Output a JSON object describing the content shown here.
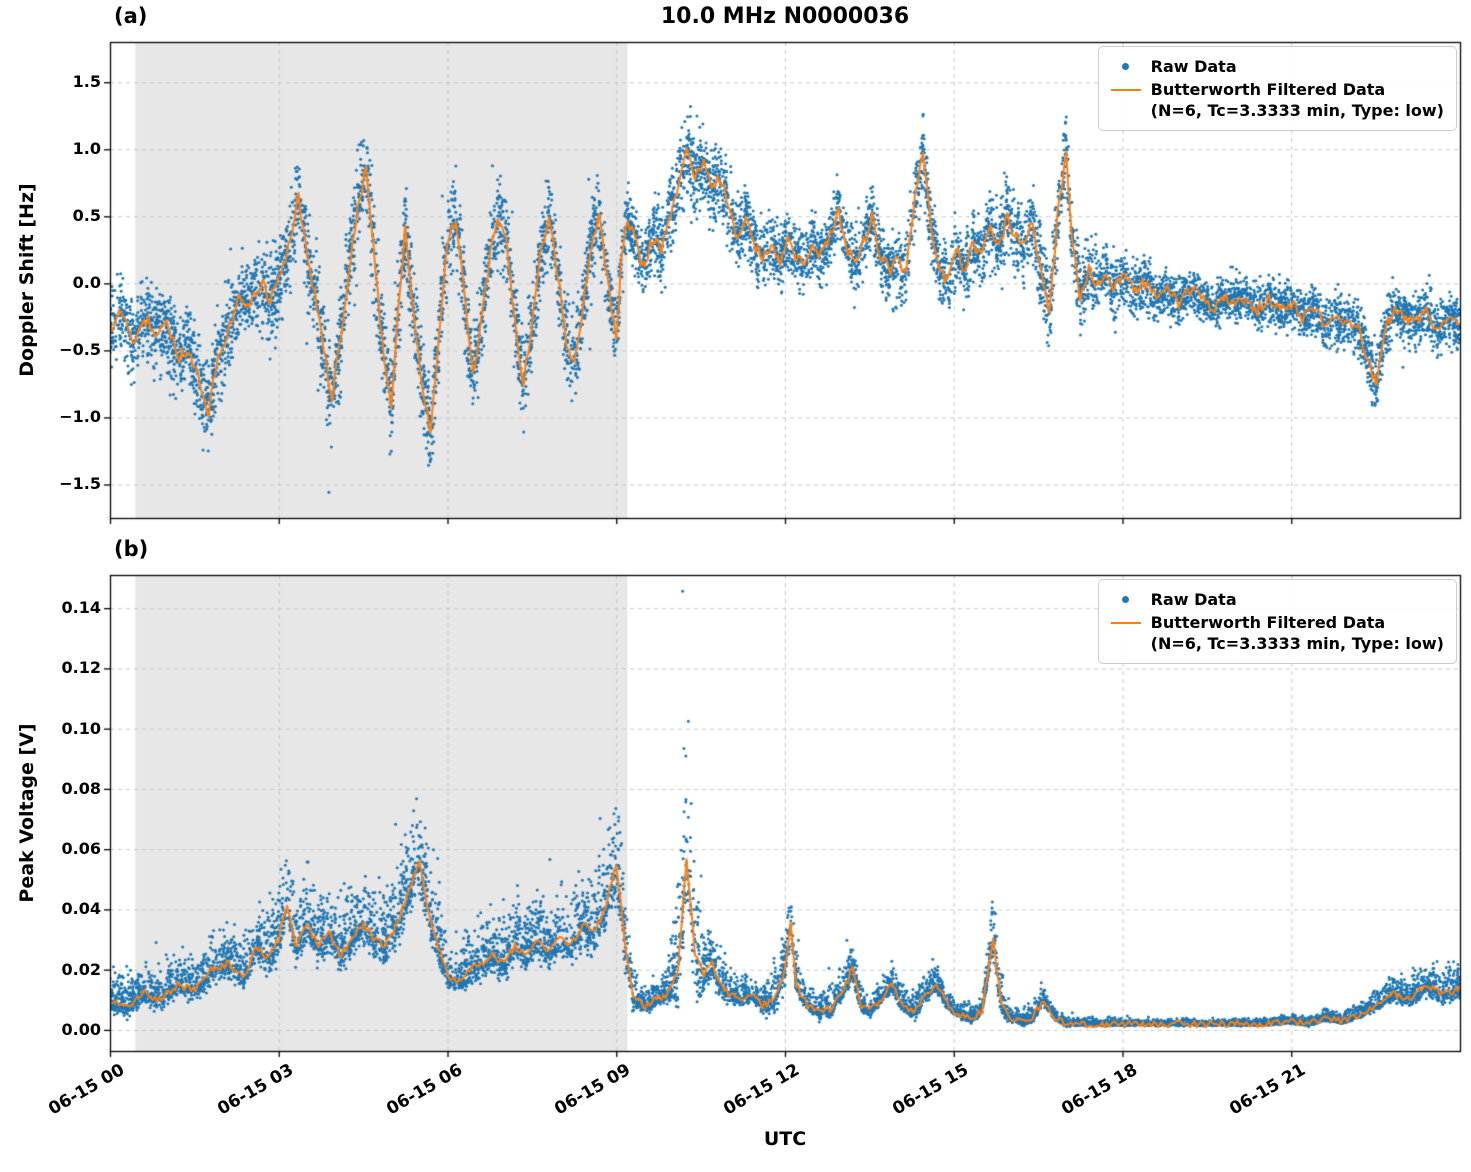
{
  "figure": {
    "title": "10.0 MHz N0000036",
    "xlabel": "UTC",
    "xtick_labels": [
      "06-15 00",
      "06-15 03",
      "06-15 06",
      "06-15 09",
      "06-15 12",
      "06-15 15",
      "06-15 18",
      "06-15 21"
    ],
    "xtick_values": [
      0,
      3,
      6,
      9,
      12,
      15,
      18,
      21
    ],
    "colors": {
      "raw": "#1f77b4",
      "filtered": "#ff7f0e",
      "shade": "#e7e7e7",
      "grid": "#c9c9c9",
      "spine": "#000000"
    },
    "legend": {
      "raw_label": "Raw Data",
      "filtered_label": "Butterworth Filtered Data",
      "filtered_sublabel": "(N=6, Tc=3.3333 min, Type: low)"
    }
  },
  "chart_data": [
    {
      "type": "scatter",
      "panel": "a",
      "tag": "(a)",
      "ylabel": "Doppler Shift [Hz]",
      "ylim": [
        -1.75,
        1.8
      ],
      "ytick_values": [
        1.5,
        1.0,
        0.5,
        0.0,
        -0.5,
        -1.0,
        -1.5
      ],
      "ytick_labels": [
        "1.5",
        "1.0",
        "0.5",
        "0.0",
        "−0.5",
        "−1.0",
        "−1.5"
      ],
      "xlim": [
        0,
        24
      ],
      "shaded_region": [
        0.45,
        9.2
      ],
      "n_scatter": 9000,
      "series": [
        {
          "name": "Raw Data",
          "style": "scatter"
        },
        {
          "name": "Butterworth Filtered Data (N=6, Tc=3.3333 min, Type: low)",
          "style": "line"
        }
      ],
      "filtered": [
        [
          0.0,
          -0.35
        ],
        [
          0.2,
          -0.2
        ],
        [
          0.4,
          -0.45
        ],
        [
          0.6,
          -0.25
        ],
        [
          0.8,
          -0.35
        ],
        [
          1.0,
          -0.3
        ],
        [
          1.2,
          -0.55
        ],
        [
          1.4,
          -0.5
        ],
        [
          1.6,
          -0.75
        ],
        [
          1.75,
          -0.95
        ],
        [
          1.9,
          -0.6
        ],
        [
          2.1,
          -0.35
        ],
        [
          2.3,
          -0.1
        ],
        [
          2.5,
          -0.15
        ],
        [
          2.7,
          0.0
        ],
        [
          2.85,
          -0.15
        ],
        [
          3.0,
          0.05
        ],
        [
          3.2,
          0.3
        ],
        [
          3.35,
          0.65
        ],
        [
          3.5,
          0.2
        ],
        [
          3.65,
          -0.1
        ],
        [
          3.8,
          -0.5
        ],
        [
          3.95,
          -0.85
        ],
        [
          4.1,
          -0.4
        ],
        [
          4.25,
          0.1
        ],
        [
          4.4,
          0.55
        ],
        [
          4.55,
          0.85
        ],
        [
          4.7,
          0.2
        ],
        [
          4.85,
          -0.5
        ],
        [
          5.0,
          -0.9
        ],
        [
          5.1,
          -0.3
        ],
        [
          5.25,
          0.4
        ],
        [
          5.4,
          -0.2
        ],
        [
          5.55,
          -0.8
        ],
        [
          5.7,
          -1.1
        ],
        [
          5.85,
          -0.4
        ],
        [
          6.0,
          0.3
        ],
        [
          6.15,
          0.5
        ],
        [
          6.3,
          -0.1
        ],
        [
          6.45,
          -0.7
        ],
        [
          6.6,
          -0.3
        ],
        [
          6.75,
          0.2
        ],
        [
          6.9,
          0.5
        ],
        [
          7.05,
          0.3
        ],
        [
          7.2,
          -0.3
        ],
        [
          7.35,
          -0.75
        ],
        [
          7.5,
          -0.3
        ],
        [
          7.65,
          0.2
        ],
        [
          7.8,
          0.5
        ],
        [
          7.95,
          0.1
        ],
        [
          8.1,
          -0.4
        ],
        [
          8.25,
          -0.6
        ],
        [
          8.4,
          -0.2
        ],
        [
          8.55,
          0.3
        ],
        [
          8.7,
          0.5
        ],
        [
          8.85,
          0.0
        ],
        [
          9.0,
          -0.4
        ],
        [
          9.1,
          0.2
        ],
        [
          9.2,
          0.5
        ],
        [
          9.35,
          0.3
        ],
        [
          9.5,
          0.1
        ],
        [
          9.65,
          0.35
        ],
        [
          9.8,
          0.25
        ],
        [
          9.95,
          0.5
        ],
        [
          10.1,
          0.75
        ],
        [
          10.25,
          1.0
        ],
        [
          10.4,
          0.8
        ],
        [
          10.55,
          0.9
        ],
        [
          10.7,
          0.7
        ],
        [
          10.85,
          0.8
        ],
        [
          11.0,
          0.55
        ],
        [
          11.15,
          0.35
        ],
        [
          11.3,
          0.5
        ],
        [
          11.45,
          0.3
        ],
        [
          11.6,
          0.2
        ],
        [
          11.75,
          0.3
        ],
        [
          11.9,
          0.15
        ],
        [
          12.05,
          0.35
        ],
        [
          12.2,
          0.2
        ],
        [
          12.35,
          0.15
        ],
        [
          12.5,
          0.3
        ],
        [
          12.65,
          0.2
        ],
        [
          12.8,
          0.35
        ],
        [
          12.95,
          0.55
        ],
        [
          13.1,
          0.25
        ],
        [
          13.25,
          0.15
        ],
        [
          13.4,
          0.3
        ],
        [
          13.55,
          0.5
        ],
        [
          13.7,
          0.2
        ],
        [
          13.85,
          0.1
        ],
        [
          14.0,
          0.15
        ],
        [
          14.15,
          0.1
        ],
        [
          14.3,
          0.6
        ],
        [
          14.45,
          1.0
        ],
        [
          14.6,
          0.4
        ],
        [
          14.75,
          0.1
        ],
        [
          14.9,
          0.0
        ],
        [
          15.05,
          0.25
        ],
        [
          15.2,
          0.1
        ],
        [
          15.35,
          0.3
        ],
        [
          15.5,
          0.2
        ],
        [
          15.65,
          0.45
        ],
        [
          15.8,
          0.25
        ],
        [
          15.95,
          0.5
        ],
        [
          16.1,
          0.35
        ],
        [
          16.25,
          0.3
        ],
        [
          16.4,
          0.45
        ],
        [
          16.55,
          0.1
        ],
        [
          16.7,
          -0.2
        ],
        [
          16.85,
          0.5
        ],
        [
          17.0,
          1.0
        ],
        [
          17.1,
          0.3
        ],
        [
          17.25,
          -0.1
        ],
        [
          17.4,
          0.1
        ],
        [
          17.55,
          0.0
        ],
        [
          17.7,
          0.1
        ],
        [
          17.85,
          -0.05
        ],
        [
          18.0,
          0.05
        ],
        [
          18.2,
          -0.05
        ],
        [
          18.4,
          0.0
        ],
        [
          18.6,
          -0.1
        ],
        [
          18.8,
          -0.05
        ],
        [
          19.0,
          -0.15
        ],
        [
          19.2,
          -0.05
        ],
        [
          19.4,
          -0.1
        ],
        [
          19.6,
          -0.2
        ],
        [
          19.8,
          -0.1
        ],
        [
          20.0,
          -0.15
        ],
        [
          20.2,
          -0.1
        ],
        [
          20.4,
          -0.2
        ],
        [
          20.6,
          -0.1
        ],
        [
          20.8,
          -0.2
        ],
        [
          21.0,
          -0.15
        ],
        [
          21.2,
          -0.25
        ],
        [
          21.4,
          -0.2
        ],
        [
          21.6,
          -0.3
        ],
        [
          21.8,
          -0.25
        ],
        [
          22.0,
          -0.3
        ],
        [
          22.2,
          -0.35
        ],
        [
          22.35,
          -0.55
        ],
        [
          22.5,
          -0.75
        ],
        [
          22.65,
          -0.4
        ],
        [
          22.8,
          -0.2
        ],
        [
          23.0,
          -0.25
        ],
        [
          23.2,
          -0.3
        ],
        [
          23.4,
          -0.2
        ],
        [
          23.6,
          -0.35
        ],
        [
          23.8,
          -0.25
        ],
        [
          24.0,
          -0.3
        ]
      ],
      "noise_amp": [
        [
          0,
          0.4
        ],
        [
          1,
          0.45
        ],
        [
          1.75,
          0.5
        ],
        [
          2.5,
          0.45
        ],
        [
          3.3,
          0.55
        ],
        [
          4,
          0.5
        ],
        [
          4.5,
          0.6
        ],
        [
          5,
          0.55
        ],
        [
          5.7,
          0.5
        ],
        [
          6.5,
          0.5
        ],
        [
          7.5,
          0.5
        ],
        [
          8.5,
          0.45
        ],
        [
          9,
          0.4
        ],
        [
          9.5,
          0.35
        ],
        [
          10.2,
          0.5
        ],
        [
          10.7,
          0.45
        ],
        [
          11.5,
          0.35
        ],
        [
          12.5,
          0.35
        ],
        [
          13.5,
          0.35
        ],
        [
          14.3,
          0.4
        ],
        [
          15,
          0.35
        ],
        [
          16,
          0.4
        ],
        [
          16.9,
          0.45
        ],
        [
          17.5,
          0.35
        ],
        [
          18,
          0.3
        ],
        [
          19,
          0.27
        ],
        [
          20,
          0.25
        ],
        [
          21,
          0.25
        ],
        [
          22,
          0.3
        ],
        [
          22.5,
          0.35
        ],
        [
          23,
          0.27
        ],
        [
          24,
          0.3
        ]
      ]
    },
    {
      "type": "scatter",
      "panel": "b",
      "tag": "(b)",
      "ylabel": "Peak Voltage [V]",
      "ylim": [
        -0.007,
        0.151
      ],
      "ytick_values": [
        0.14,
        0.12,
        0.1,
        0.08,
        0.06,
        0.04,
        0.02,
        0.0
      ],
      "ytick_labels": [
        "0.14",
        "0.12",
        "0.10",
        "0.08",
        "0.06",
        "0.04",
        "0.02",
        "0.00"
      ],
      "xlim": [
        0,
        24
      ],
      "shaded_region": [
        0.45,
        9.2
      ],
      "n_scatter": 9000,
      "series": [
        {
          "name": "Raw Data",
          "style": "scatter"
        },
        {
          "name": "Butterworth Filtered Data (N=6, Tc=3.3333 min, Type: low)",
          "style": "line"
        }
      ],
      "filtered": [
        [
          0.0,
          0.01
        ],
        [
          0.3,
          0.008
        ],
        [
          0.6,
          0.012
        ],
        [
          0.9,
          0.01
        ],
        [
          1.2,
          0.015
        ],
        [
          1.5,
          0.013
        ],
        [
          1.8,
          0.02
        ],
        [
          2.1,
          0.022
        ],
        [
          2.4,
          0.018
        ],
        [
          2.6,
          0.028
        ],
        [
          2.8,
          0.024
        ],
        [
          3.0,
          0.03
        ],
        [
          3.15,
          0.042
        ],
        [
          3.3,
          0.028
        ],
        [
          3.5,
          0.035
        ],
        [
          3.7,
          0.028
        ],
        [
          3.9,
          0.032
        ],
        [
          4.1,
          0.025
        ],
        [
          4.3,
          0.03
        ],
        [
          4.5,
          0.035
        ],
        [
          4.7,
          0.03
        ],
        [
          4.9,
          0.028
        ],
        [
          5.1,
          0.035
        ],
        [
          5.3,
          0.045
        ],
        [
          5.5,
          0.056
        ],
        [
          5.65,
          0.04
        ],
        [
          5.8,
          0.03
        ],
        [
          6.0,
          0.018
        ],
        [
          6.2,
          0.016
        ],
        [
          6.4,
          0.02
        ],
        [
          6.6,
          0.022
        ],
        [
          6.8,
          0.025
        ],
        [
          7.0,
          0.022
        ],
        [
          7.2,
          0.028
        ],
        [
          7.4,
          0.024
        ],
        [
          7.6,
          0.03
        ],
        [
          7.8,
          0.026
        ],
        [
          8.0,
          0.03
        ],
        [
          8.2,
          0.028
        ],
        [
          8.4,
          0.035
        ],
        [
          8.6,
          0.032
        ],
        [
          8.8,
          0.04
        ],
        [
          9.0,
          0.055
        ],
        [
          9.15,
          0.03
        ],
        [
          9.3,
          0.01
        ],
        [
          9.5,
          0.008
        ],
        [
          9.7,
          0.01
        ],
        [
          9.9,
          0.012
        ],
        [
          10.1,
          0.02
        ],
        [
          10.25,
          0.057
        ],
        [
          10.4,
          0.025
        ],
        [
          10.55,
          0.018
        ],
        [
          10.7,
          0.022
        ],
        [
          10.85,
          0.015
        ],
        [
          11.0,
          0.012
        ],
        [
          11.2,
          0.01
        ],
        [
          11.4,
          0.012
        ],
        [
          11.6,
          0.008
        ],
        [
          11.8,
          0.01
        ],
        [
          12.0,
          0.02
        ],
        [
          12.1,
          0.035
        ],
        [
          12.2,
          0.015
        ],
        [
          12.4,
          0.008
        ],
        [
          12.6,
          0.006
        ],
        [
          12.8,
          0.007
        ],
        [
          13.0,
          0.012
        ],
        [
          13.2,
          0.02
        ],
        [
          13.35,
          0.008
        ],
        [
          13.5,
          0.006
        ],
        [
          13.7,
          0.01
        ],
        [
          13.9,
          0.015
        ],
        [
          14.1,
          0.008
        ],
        [
          14.3,
          0.006
        ],
        [
          14.5,
          0.012
        ],
        [
          14.7,
          0.015
        ],
        [
          14.9,
          0.008
        ],
        [
          15.1,
          0.005
        ],
        [
          15.3,
          0.004
        ],
        [
          15.5,
          0.006
        ],
        [
          15.7,
          0.03
        ],
        [
          15.85,
          0.008
        ],
        [
          16.0,
          0.004
        ],
        [
          16.2,
          0.003
        ],
        [
          16.4,
          0.004
        ],
        [
          16.6,
          0.01
        ],
        [
          16.8,
          0.004
        ],
        [
          17.0,
          0.002
        ],
        [
          17.5,
          0.002
        ],
        [
          18.0,
          0.002
        ],
        [
          18.5,
          0.002
        ],
        [
          19.0,
          0.002
        ],
        [
          19.5,
          0.002
        ],
        [
          20.0,
          0.002
        ],
        [
          20.5,
          0.002
        ],
        [
          21.0,
          0.003
        ],
        [
          21.3,
          0.002
        ],
        [
          21.6,
          0.004
        ],
        [
          21.9,
          0.003
        ],
        [
          22.2,
          0.005
        ],
        [
          22.5,
          0.008
        ],
        [
          22.8,
          0.012
        ],
        [
          23.1,
          0.01
        ],
        [
          23.4,
          0.015
        ],
        [
          23.7,
          0.012
        ],
        [
          24.0,
          0.014
        ]
      ],
      "noise_amp": [
        [
          0,
          0.012
        ],
        [
          1,
          0.013
        ],
        [
          2,
          0.015
        ],
        [
          3,
          0.02
        ],
        [
          3.2,
          0.022
        ],
        [
          4,
          0.018
        ],
        [
          5,
          0.022
        ],
        [
          5.5,
          0.03
        ],
        [
          6,
          0.015
        ],
        [
          7,
          0.018
        ],
        [
          8,
          0.02
        ],
        [
          8.8,
          0.025
        ],
        [
          9.05,
          0.032
        ],
        [
          9.4,
          0.008
        ],
        [
          9.9,
          0.01
        ],
        [
          10.25,
          0.062
        ],
        [
          10.6,
          0.018
        ],
        [
          11,
          0.01
        ],
        [
          11.5,
          0.007
        ],
        [
          12.05,
          0.02
        ],
        [
          12.4,
          0.007
        ],
        [
          13,
          0.012
        ],
        [
          13.5,
          0.006
        ],
        [
          14,
          0.008
        ],
        [
          14.6,
          0.01
        ],
        [
          15,
          0.006
        ],
        [
          15.5,
          0.005
        ],
        [
          15.75,
          0.018
        ],
        [
          16,
          0.004
        ],
        [
          16.5,
          0.006
        ],
        [
          17,
          0.0025
        ],
        [
          18,
          0.002
        ],
        [
          19,
          0.002
        ],
        [
          20,
          0.002
        ],
        [
          20.8,
          0.0025
        ],
        [
          21.5,
          0.003
        ],
        [
          22,
          0.004
        ],
        [
          22.5,
          0.006
        ],
        [
          23,
          0.009
        ],
        [
          23.5,
          0.011
        ],
        [
          24,
          0.012
        ]
      ]
    }
  ]
}
